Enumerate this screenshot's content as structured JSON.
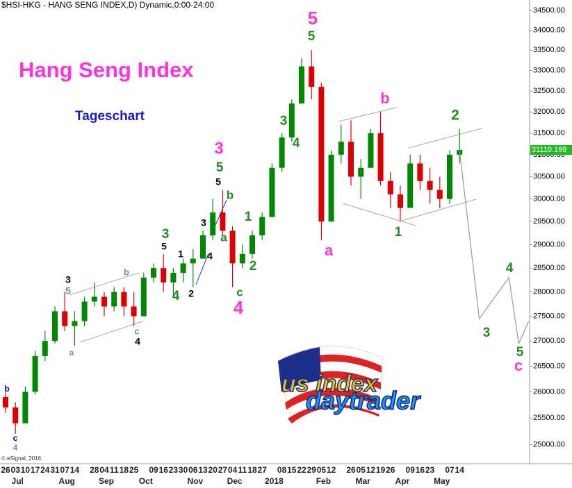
{
  "header": "$HSI-HKG - HANG SENG INDEX,D) Dynamic,0:00-24:00",
  "copyright": "© eSignal, 2016",
  "logo": {
    "line1": "us index",
    "line2": "daytrader"
  },
  "chart_data": {
    "type": "candlestick",
    "title": "Hang Seng Index",
    "subtitle": "Tageschart",
    "categories": [
      "26",
      "03",
      "10",
      "17",
      "24",
      "31",
      "07",
      "14",
      null,
      "28",
      "04",
      "11",
      "18",
      "25",
      null,
      "09",
      "16",
      "23",
      "30",
      "06",
      "13",
      "20",
      "27",
      "04",
      "11",
      "18",
      "27",
      null,
      "08",
      "15",
      "22",
      "29",
      "05",
      "12",
      null,
      "26",
      "05",
      "12",
      "19",
      "26",
      null,
      "09",
      "16",
      "23",
      null,
      "07",
      "14",
      null,
      null,
      null,
      null,
      null,
      null,
      null
    ],
    "months": [
      null,
      "Jul",
      null,
      null,
      null,
      null,
      "Aug",
      null,
      null,
      null,
      "Sep",
      null,
      null,
      null,
      "Oct",
      null,
      null,
      null,
      null,
      "Nov",
      null,
      null,
      null,
      "Dec",
      null,
      null,
      null,
      "2018",
      null,
      null,
      null,
      null,
      "Feb",
      null,
      null,
      null,
      "Mar",
      null,
      null,
      null,
      "Apr",
      null,
      null,
      null,
      "May",
      null,
      null,
      null,
      null,
      null,
      null,
      null,
      null,
      null
    ],
    "open": [
      25900,
      25700,
      25400,
      26000,
      26700,
      27000,
      27600,
      27300,
      27400,
      27800,
      27900,
      27700,
      28000,
      27700,
      27500,
      28300,
      28500,
      28200,
      28400,
      28600,
      28700,
      29200,
      29700,
      29300,
      28600,
      28800,
      29200,
      29600,
      30700,
      31400,
      32200,
      33100,
      32600,
      29500,
      31000,
      31300,
      30500,
      30700,
      31500,
      30400,
      30100,
      29800,
      30800,
      30400,
      30200,
      30000,
      31000,
      null,
      null,
      null,
      null,
      null,
      null,
      null
    ],
    "high": [
      26000,
      25800,
      26100,
      26800,
      27200,
      27700,
      28000,
      27600,
      27900,
      28200,
      28000,
      28100,
      28100,
      28000,
      28400,
      28600,
      28800,
      28500,
      28700,
      28900,
      29300,
      30000,
      30200,
      29400,
      29000,
      29300,
      29700,
      30800,
      31500,
      32300,
      33300,
      33500,
      32700,
      31100,
      31700,
      31800,
      30900,
      31600,
      32000,
      30600,
      30300,
      31000,
      31000,
      30700,
      30500,
      31100,
      31600,
      null,
      null,
      null,
      null,
      null,
      null,
      null
    ],
    "low": [
      25600,
      25200,
      25400,
      25950,
      26600,
      26950,
      27200,
      26900,
      27300,
      27700,
      27500,
      27600,
      27500,
      27300,
      27500,
      28200,
      28000,
      27900,
      28200,
      28100,
      28700,
      29100,
      29200,
      28100,
      28500,
      28700,
      29100,
      29600,
      30600,
      31300,
      32200,
      32300,
      29100,
      29500,
      30800,
      30300,
      30000,
      30700,
      30300,
      29800,
      29500,
      29800,
      30200,
      29900,
      29800,
      29900,
      30800,
      null,
      null,
      null,
      null,
      null,
      null,
      null
    ],
    "close": [
      25700,
      25400,
      26000,
      26700,
      27000,
      27600,
      27300,
      27400,
      27800,
      27900,
      27700,
      28000,
      27700,
      27500,
      28300,
      28500,
      28200,
      28400,
      28600,
      28700,
      29200,
      29700,
      29300,
      28600,
      28800,
      29200,
      29600,
      30700,
      31400,
      32200,
      33100,
      32600,
      29500,
      31000,
      31300,
      30500,
      30700,
      31500,
      30400,
      30100,
      29800,
      30800,
      30400,
      30200,
      30000,
      31000,
      31110.199,
      null,
      null,
      null,
      null,
      null,
      null,
      null
    ],
    "up_color": "#008800",
    "down_color": "#dd0000",
    "projection": {
      "color": "#999999",
      "values": [
        null,
        null,
        null,
        null,
        null,
        null,
        null,
        null,
        null,
        null,
        null,
        null,
        null,
        null,
        null,
        null,
        null,
        null,
        null,
        null,
        null,
        null,
        null,
        null,
        null,
        null,
        null,
        null,
        null,
        null,
        null,
        null,
        null,
        null,
        null,
        null,
        null,
        null,
        null,
        null,
        null,
        null,
        null,
        null,
        null,
        null,
        31100,
        null,
        27450,
        null,
        null,
        28300,
        26950,
        27400
      ]
    },
    "last_price": 31110.199,
    "log_scale": true,
    "ylim": [
      24650,
      34770
    ],
    "yticks": [
      {
        "value": 25000,
        "label": "25000.00"
      },
      {
        "value": 25500,
        "label": "25500.00"
      },
      {
        "value": 26000,
        "label": "26000.00"
      },
      {
        "value": 26500,
        "label": "26500.00"
      },
      {
        "value": 27000,
        "label": "27000.00"
      },
      {
        "value": 27500,
        "label": "27500.00"
      },
      {
        "value": 28000,
        "label": "28000.00"
      },
      {
        "value": 28500,
        "label": "28500.00"
      },
      {
        "value": 29000,
        "label": "29000.00"
      },
      {
        "value": 29500,
        "label": "29500.00"
      },
      {
        "value": 30000,
        "label": "30000.00"
      },
      {
        "value": 30500,
        "label": "30500.00"
      },
      {
        "value": 31000,
        "label": "31000.00"
      },
      {
        "value": 31500,
        "label": "31500.00"
      },
      {
        "value": 32000,
        "label": "32000.00"
      },
      {
        "value": 32500,
        "label": "32500.00"
      },
      {
        "value": 33000,
        "label": "33000.00"
      },
      {
        "value": 33500,
        "label": "33500.00"
      },
      {
        "value": 34000,
        "label": "34000.00"
      },
      {
        "value": 34500,
        "label": "34500.00"
      }
    ],
    "annotations": [
      {
        "text": "b",
        "color": "#0000cc"
      },
      {
        "text": "c",
        "color": "#0000cc"
      },
      {
        "text": "4",
        "color": "#888888"
      },
      {
        "text": "3",
        "color": "#000000"
      },
      {
        "text": "5",
        "color": "#888888"
      },
      {
        "text": "a",
        "color": "#888888"
      },
      {
        "text": "b",
        "color": "#888888"
      },
      {
        "text": "c",
        "color": "#888888"
      },
      {
        "text": "4",
        "color": "#000000"
      },
      {
        "text": "3",
        "color": "#228b22"
      },
      {
        "text": "5",
        "color": "#000000"
      },
      {
        "text": "1",
        "color": "#000000"
      },
      {
        "text": "4",
        "color": "#228b22"
      },
      {
        "text": "2",
        "color": "#000000"
      },
      {
        "text": "3",
        "color": "#000000"
      },
      {
        "text": "4",
        "color": "#000000"
      },
      {
        "text": "3",
        "color": "#ff33dd"
      },
      {
        "text": "5",
        "color": "#228b22"
      },
      {
        "text": "5",
        "color": "#000000"
      },
      {
        "text": "b",
        "color": "#228b22"
      },
      {
        "text": "a",
        "color": "#228b22"
      },
      {
        "text": "1",
        "color": "#228b22"
      },
      {
        "text": "2",
        "color": "#228b22"
      },
      {
        "text": "c",
        "color": "#228b22"
      },
      {
        "text": "4",
        "color": "#ff33dd"
      },
      {
        "text": "5",
        "color": "#ff33dd"
      },
      {
        "text": "5",
        "color": "#228b22"
      },
      {
        "text": "3",
        "color": "#228b22"
      },
      {
        "text": "4",
        "color": "#228b22"
      },
      {
        "text": "a",
        "color": "#ff33dd"
      },
      {
        "text": "b",
        "color": "#ff33dd"
      },
      {
        "text": "2",
        "color": "#228b22"
      },
      {
        "text": "1",
        "color": "#228b22"
      },
      {
        "text": "3",
        "color": "#228b22"
      },
      {
        "text": "4",
        "color": "#228b22"
      },
      {
        "text": "5",
        "color": "#228b22"
      },
      {
        "text": "c",
        "color": "#ff33dd"
      }
    ]
  }
}
